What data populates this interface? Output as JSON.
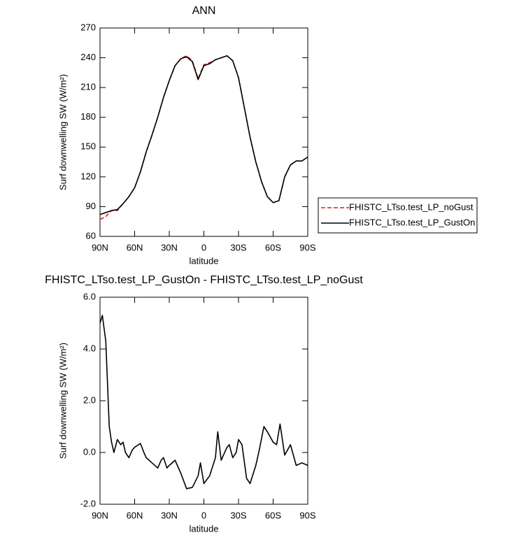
{
  "chart_data": [
    {
      "type": "line",
      "title": "ANN",
      "xlabel": "latitude",
      "ylabel": "Surf downwelling SW (W/m²)",
      "x": [
        90,
        85,
        80,
        75,
        70,
        65,
        60,
        55,
        50,
        45,
        40,
        35,
        30,
        25,
        20,
        15,
        10,
        5,
        0,
        -5,
        -10,
        -15,
        -20,
        -25,
        -30,
        -35,
        -40,
        -45,
        -50,
        -55,
        -60,
        -65,
        -70,
        -75,
        -80,
        -85,
        -90
      ],
      "series": [
        {
          "name": "FHISTC_LTso.test_LP_noGust",
          "color": "#e41a1c",
          "dash": true,
          "values": [
            77,
            80,
            86,
            86,
            93,
            100,
            109,
            125,
            145,
            162,
            180,
            200,
            217,
            232,
            239,
            242,
            237,
            219,
            233,
            235,
            238,
            240,
            242,
            237,
            220,
            190,
            160,
            135,
            115,
            100,
            94,
            96,
            120,
            132,
            136,
            136,
            140
          ]
        },
        {
          "name": "FHISTC_LTso.test_LP_GustOn",
          "color": "#000000",
          "dash": false,
          "values": [
            82,
            84,
            86,
            87,
            93,
            100,
            109,
            125,
            145,
            162,
            180,
            200,
            217,
            232,
            239,
            241,
            236,
            218,
            232,
            234,
            238,
            240,
            242,
            237,
            220,
            190,
            160,
            135,
            115,
            100,
            94,
            96,
            120,
            132,
            136,
            136,
            140
          ]
        }
      ],
      "xlim": [
        90,
        -90
      ],
      "xticks": [
        {
          "value": 90,
          "label": "90N"
        },
        {
          "value": 60,
          "label": "60N"
        },
        {
          "value": 30,
          "label": "30N"
        },
        0,
        {
          "value": -30,
          "label": "30S"
        },
        {
          "value": -60,
          "label": "60S"
        },
        {
          "value": -90,
          "label": "90S"
        }
      ],
      "ylim": [
        60,
        270
      ],
      "yticks": [
        60,
        90,
        120,
        150,
        180,
        210,
        240,
        270
      ],
      "legend": "right"
    },
    {
      "type": "line",
      "title": "FHISTC_LTso.test_LP_GustOn - FHISTC_LTso.test_LP_noGust",
      "xlabel": "latitude",
      "ylabel": "Surf downwelling SW (W/m²)",
      "x": [
        90,
        88,
        85,
        82,
        80,
        78,
        75,
        72,
        70,
        68,
        65,
        62,
        60,
        55,
        52,
        50,
        45,
        40,
        37,
        35,
        32,
        30,
        25,
        20,
        15,
        10,
        5,
        3,
        0,
        -5,
        -10,
        -12,
        -15,
        -20,
        -22,
        -25,
        -28,
        -30,
        -33,
        -37,
        -40,
        -45,
        -48,
        -52,
        -55,
        -60,
        -63,
        -66,
        -70,
        -75,
        -80,
        -85,
        -90
      ],
      "series": [
        {
          "color": "#000000",
          "dash": false,
          "values": [
            5.0,
            5.3,
            4.3,
            1.0,
            0.4,
            0.0,
            0.5,
            0.3,
            0.4,
            0.0,
            -0.2,
            0.1,
            0.2,
            0.35,
            0.0,
            -0.2,
            -0.4,
            -0.6,
            -0.3,
            -0.2,
            -0.6,
            -0.5,
            -0.3,
            -0.8,
            -1.4,
            -1.35,
            -0.9,
            -0.4,
            -1.2,
            -0.9,
            -0.2,
            0.8,
            -0.3,
            0.2,
            0.3,
            -0.2,
            0.0,
            0.5,
            0.3,
            -1.0,
            -1.2,
            -0.5,
            0.1,
            1.0,
            0.8,
            0.4,
            0.3,
            1.1,
            -0.1,
            0.3,
            -0.5,
            -0.4,
            -0.5
          ]
        }
      ],
      "xlim": [
        90,
        -90
      ],
      "xticks": [
        {
          "value": 90,
          "label": "90N"
        },
        {
          "value": 60,
          "label": "60N"
        },
        {
          "value": 30,
          "label": "30N"
        },
        0,
        {
          "value": -30,
          "label": "30S"
        },
        {
          "value": -60,
          "label": "60S"
        },
        {
          "value": -90,
          "label": "90S"
        }
      ],
      "ylim": [
        -2,
        6
      ],
      "yticks": [
        {
          "value": -2,
          "label": "-2.0"
        },
        {
          "value": 0,
          "label": "0.0"
        },
        {
          "value": 2,
          "label": "2.0"
        },
        {
          "value": 4,
          "label": "4.0"
        },
        {
          "value": 6,
          "label": "6.0"
        }
      ]
    }
  ]
}
